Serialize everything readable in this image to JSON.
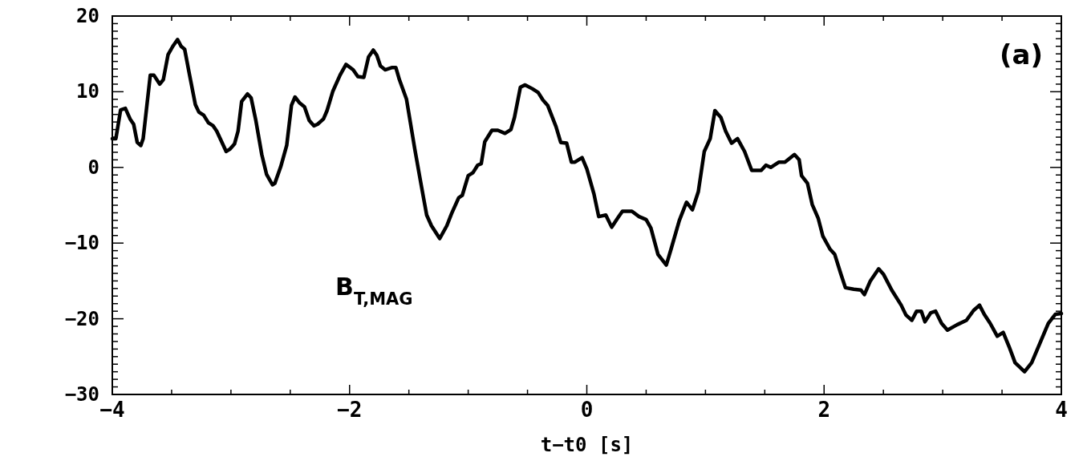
{
  "chart_data": {
    "type": "line",
    "xlabel": "t−t0 [s]",
    "annotations": [
      "(a)"
    ],
    "legend": false,
    "grid": false,
    "line_style": "solid",
    "marker": "none",
    "xlim": [
      -4,
      4
    ],
    "ylim": [
      -30,
      20
    ],
    "xticks": [
      -4,
      {
        "value": -3.5,
        "label": null
      },
      {
        "value": -3,
        "label": null
      },
      {
        "value": -2.5,
        "label": null
      },
      -2,
      {
        "value": -1.5,
        "label": null
      },
      {
        "value": -1,
        "label": null
      },
      {
        "value": -0.5,
        "label": null
      },
      0,
      {
        "value": 0.5,
        "label": null
      },
      {
        "value": 1,
        "label": null
      },
      {
        "value": 1.5,
        "label": null
      },
      2,
      {
        "value": 2.5,
        "label": null
      },
      {
        "value": 3,
        "label": null
      },
      {
        "value": 3.5,
        "label": null
      },
      4
    ],
    "yticks": [
      -30,
      {
        "value": -29,
        "label": null
      },
      {
        "value": -28,
        "label": null
      },
      {
        "value": -27,
        "label": null
      },
      {
        "value": -26,
        "label": null
      },
      {
        "value": -25,
        "label": null
      },
      {
        "value": -24,
        "label": null
      },
      {
        "value": -23,
        "label": null
      },
      {
        "value": -22,
        "label": null
      },
      {
        "value": -21,
        "label": null
      },
      -20,
      {
        "value": -19,
        "label": null
      },
      {
        "value": -18,
        "label": null
      },
      {
        "value": -17,
        "label": null
      },
      {
        "value": -16,
        "label": null
      },
      {
        "value": -15,
        "label": null
      },
      {
        "value": -14,
        "label": null
      },
      {
        "value": -13,
        "label": null
      },
      {
        "value": -12,
        "label": null
      },
      {
        "value": -11,
        "label": null
      },
      -10,
      {
        "value": -9,
        "label": null
      },
      {
        "value": -8,
        "label": null
      },
      {
        "value": -7,
        "label": null
      },
      {
        "value": -6,
        "label": null
      },
      {
        "value": -5,
        "label": null
      },
      {
        "value": -4,
        "label": null
      },
      {
        "value": -3,
        "label": null
      },
      {
        "value": -2,
        "label": null
      },
      {
        "value": -1,
        "label": null
      },
      0,
      {
        "value": 1,
        "label": null
      },
      {
        "value": 2,
        "label": null
      },
      {
        "value": 3,
        "label": null
      },
      {
        "value": 4,
        "label": null
      },
      {
        "value": 5,
        "label": null
      },
      {
        "value": 6,
        "label": null
      },
      {
        "value": 7,
        "label": null
      },
      {
        "value": 8,
        "label": null
      },
      {
        "value": 9,
        "label": null
      },
      10,
      {
        "value": 11,
        "label": null
      },
      {
        "value": 12,
        "label": null
      },
      {
        "value": 13,
        "label": null
      },
      {
        "value": 14,
        "label": null
      },
      {
        "value": 15,
        "label": null
      },
      {
        "value": 16,
        "label": null
      },
      {
        "value": 17,
        "label": null
      },
      {
        "value": 18,
        "label": null
      },
      {
        "value": 19,
        "label": null
      },
      20
    ],
    "series": [
      {
        "name": "B$_{T,MAG}$",
        "color": "#000000",
        "x": [
          -4,
          -3.97,
          -3.93,
          -3.89,
          -3.85,
          -3.82,
          -3.79,
          -3.76,
          -3.74,
          -3.68,
          -3.65,
          -3.6,
          -3.57,
          -3.53,
          -3.49,
          -3.45,
          -3.42,
          -3.39,
          -3.35,
          -3.3,
          -3.27,
          -3.23,
          -3.19,
          -3.15,
          -3.12,
          -3.04,
          -3.01,
          -2.97,
          -2.94,
          -2.91,
          -2.86,
          -2.83,
          -2.79,
          -2.74,
          -2.7,
          -2.65,
          -2.63,
          -2.58,
          -2.53,
          -2.49,
          -2.46,
          -2.42,
          -2.38,
          -2.34,
          -2.3,
          -2.27,
          -2.22,
          -2.19,
          -2.14,
          -2.08,
          -2.03,
          -1.97,
          -1.93,
          -1.88,
          -1.84,
          -1.8,
          -1.77,
          -1.74,
          -1.7,
          -1.64,
          -1.61,
          -1.58,
          -1.52,
          -1.45,
          -1.4,
          -1.35,
          -1.31,
          -1.24,
          -1.18,
          -1.14,
          -1.08,
          -1.05,
          -1,
          -0.96,
          -0.92,
          -0.89,
          -0.86,
          -0.8,
          -0.75,
          -0.69,
          -0.64,
          -0.61,
          -0.56,
          -0.52,
          -0.46,
          -0.41,
          -0.37,
          -0.33,
          -0.26,
          -0.22,
          -0.17,
          -0.13,
          -0.1,
          -0.04,
          0,
          0.06,
          0.1,
          0.16,
          0.21,
          0.26,
          0.3,
          0.38,
          0.44,
          0.5,
          0.54,
          0.6,
          0.67,
          0.71,
          0.78,
          0.84,
          0.89,
          0.94,
          0.99,
          1.04,
          1.08,
          1.13,
          1.17,
          1.22,
          1.27,
          1.33,
          1.39,
          1.47,
          1.51,
          1.55,
          1.62,
          1.67,
          1.75,
          1.79,
          1.81,
          1.86,
          1.9,
          1.95,
          1.99,
          2.05,
          2.09,
          2.14,
          2.18,
          2.25,
          2.31,
          2.34,
          2.39,
          2.46,
          2.5,
          2.57,
          2.65,
          2.69,
          2.74,
          2.78,
          2.82,
          2.85,
          2.9,
          2.94,
          2.99,
          3.04,
          3.12,
          3.2,
          3.26,
          3.31,
          3.35,
          3.4,
          3.46,
          3.51,
          3.56,
          3.61,
          3.69,
          3.75,
          3.82,
          3.89,
          3.95,
          4
        ],
        "values": [
          3.8,
          3.8,
          7.6,
          7.8,
          6.4,
          5.7,
          3.3,
          2.9,
          3.8,
          12.2,
          12.2,
          11,
          11.6,
          14.9,
          16,
          16.9,
          16,
          15.6,
          12.3,
          8.3,
          7.3,
          6.9,
          5.9,
          5.5,
          4.8,
          2.1,
          2.4,
          3.1,
          4.8,
          8.7,
          9.7,
          9.2,
          6.2,
          1.7,
          -0.9,
          -2.3,
          -2.1,
          0.1,
          2.9,
          8.2,
          9.3,
          8.5,
          8,
          6.2,
          5.5,
          5.7,
          6.4,
          7.5,
          10.1,
          12.2,
          13.6,
          12.9,
          12,
          11.9,
          14.6,
          15.5,
          14.8,
          13.4,
          12.9,
          13.2,
          13.2,
          11.6,
          9,
          2.4,
          -2,
          -6.3,
          -7.7,
          -9.4,
          -7.7,
          -6.1,
          -4,
          -3.7,
          -1.1,
          -0.7,
          0.3,
          0.5,
          3.4,
          4.9,
          4.9,
          4.5,
          5,
          6.6,
          10.6,
          10.9,
          10.4,
          9.9,
          8.9,
          8.2,
          5.4,
          3.3,
          3.2,
          0.7,
          0.7,
          1.3,
          -0.2,
          -3.5,
          -6.5,
          -6.3,
          -7.9,
          -6.7,
          -5.8,
          -5.8,
          -6.5,
          -6.9,
          -8,
          -11.5,
          -12.9,
          -10.8,
          -7,
          -4.6,
          -5.6,
          -3.2,
          2.1,
          3.8,
          7.5,
          6.6,
          4.8,
          3.2,
          3.8,
          2.1,
          -0.4,
          -0.4,
          0.3,
          0,
          0.7,
          0.7,
          1.7,
          1,
          -1.1,
          -2.1,
          -4.9,
          -6.7,
          -9.1,
          -10.8,
          -11.5,
          -14,
          -15.9,
          -16.1,
          -16.2,
          -16.8,
          -15,
          -13.4,
          -14.1,
          -16.2,
          -18.2,
          -19.5,
          -20.2,
          -19,
          -19,
          -20.4,
          -19.2,
          -19,
          -20.6,
          -21.5,
          -20.8,
          -20.2,
          -18.9,
          -18.2,
          -19.4,
          -20.6,
          -22.3,
          -21.8,
          -23.7,
          -25.8,
          -27,
          -25.8,
          -23.2,
          -20.6,
          -19.4,
          -19.3
        ]
      }
    ]
  }
}
